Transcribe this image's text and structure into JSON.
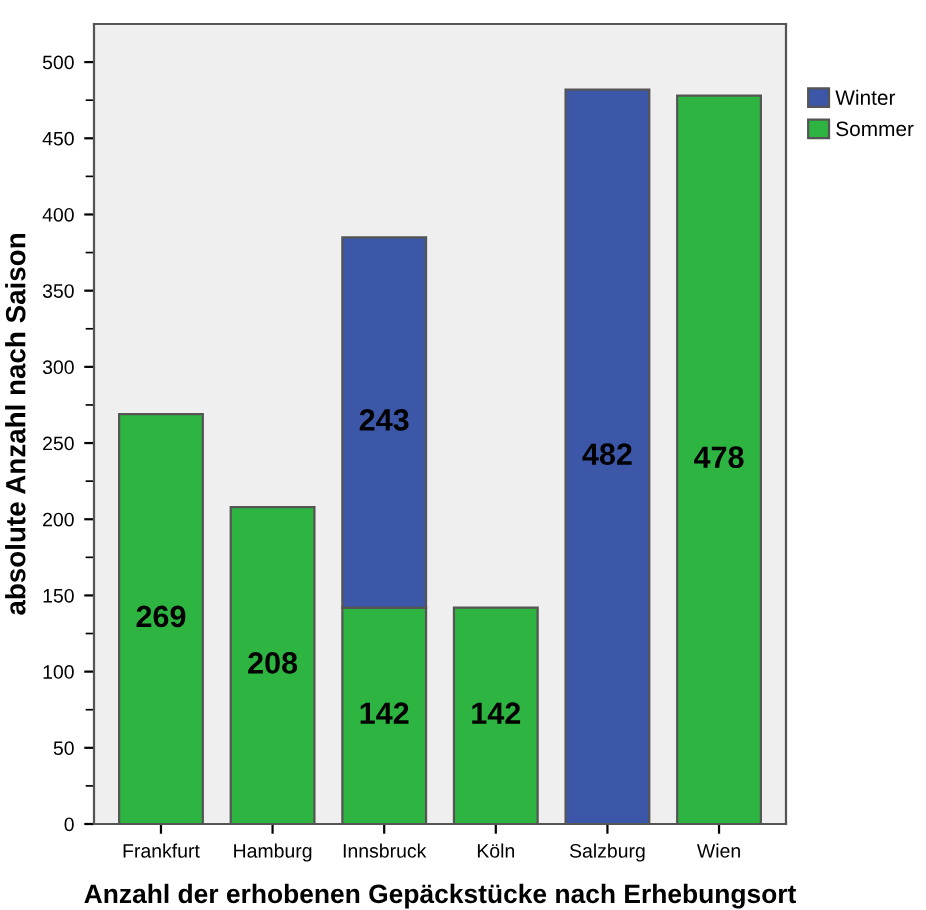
{
  "chart_data": {
    "type": "bar",
    "stacked": true,
    "xlabel": "Anzahl der erhobenen Gepäckstücke nach Erhebungsort",
    "ylabel": "absolute Anzahl nach Saison",
    "categories": [
      "Frankfurt",
      "Hamburg",
      "Innsbruck",
      "Köln",
      "Salzburg",
      "Wien"
    ],
    "series": [
      {
        "name": "Sommer",
        "color": "#2db441",
        "values": [
          269,
          208,
          142,
          142,
          null,
          478
        ]
      },
      {
        "name": "Winter",
        "color": "#3c57a8",
        "values": [
          null,
          null,
          243,
          null,
          482,
          null
        ]
      }
    ],
    "ylim": [
      0,
      525
    ],
    "yticks": [
      0,
      {
        "value": 25,
        "label": null
      },
      50,
      {
        "value": 75,
        "label": null
      },
      100,
      {
        "value": 125,
        "label": null
      },
      150,
      {
        "value": 175,
        "label": null
      },
      200,
      {
        "value": 225,
        "label": null
      },
      250,
      {
        "value": 275,
        "label": null
      },
      300,
      {
        "value": 325,
        "label": null
      },
      350,
      {
        "value": 375,
        "label": null
      },
      400,
      {
        "value": 425,
        "label": null
      },
      450,
      {
        "value": 475,
        "label": null
      },
      500
    ],
    "data_labels": true,
    "legend": "top right",
    "grid": false
  }
}
